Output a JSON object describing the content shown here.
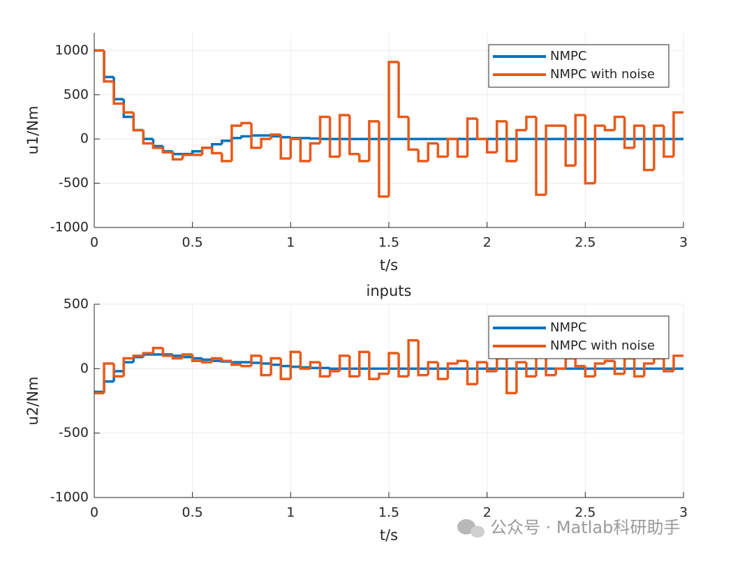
{
  "chart_data": [
    {
      "type": "stairs",
      "ylabel": "u1/Nm",
      "xlabel": "t/s",
      "x": [
        0,
        0.05,
        0.1,
        0.15,
        0.2,
        0.25,
        0.3,
        0.35,
        0.4,
        0.45,
        0.5,
        0.55,
        0.6,
        0.65,
        0.7,
        0.75,
        0.8,
        0.85,
        0.9,
        0.95,
        1,
        1.05,
        1.1,
        1.15,
        1.2,
        1.25,
        1.3,
        1.35,
        1.4,
        1.45,
        1.5,
        1.55,
        1.6,
        1.65,
        1.7,
        1.75,
        1.8,
        1.85,
        1.9,
        1.95,
        2,
        2.05,
        2.1,
        2.15,
        2.2,
        2.25,
        2.3,
        2.35,
        2.4,
        2.45,
        2.5,
        2.55,
        2.6,
        2.65,
        2.7,
        2.75,
        2.8,
        2.85,
        2.9,
        2.95
      ],
      "series": [
        {
          "name": "NMPC",
          "color": "#0072bd",
          "values": [
            1000,
            700,
            450,
            250,
            100,
            0,
            -80,
            -140,
            -170,
            -170,
            -140,
            -100,
            -60,
            -20,
            10,
            30,
            40,
            40,
            30,
            20,
            10,
            10,
            5,
            0,
            0,
            0,
            0,
            0,
            0,
            0,
            0,
            0,
            0,
            0,
            0,
            0,
            0,
            0,
            0,
            0,
            0,
            0,
            0,
            0,
            0,
            0,
            0,
            0,
            0,
            0,
            0,
            0,
            0,
            0,
            0,
            0,
            0,
            0,
            0,
            0
          ]
        },
        {
          "name": "NMPC with noise",
          "color": "#e8591a",
          "values": [
            1000,
            650,
            400,
            300,
            100,
            -50,
            -100,
            -150,
            -230,
            -180,
            -180,
            -100,
            -160,
            -250,
            150,
            180,
            -100,
            0,
            50,
            -220,
            0,
            -250,
            -50,
            250,
            -200,
            270,
            -170,
            -250,
            200,
            -650,
            870,
            250,
            -120,
            -250,
            -50,
            -200,
            0,
            -200,
            230,
            0,
            -150,
            200,
            -250,
            100,
            250,
            -630,
            150,
            150,
            -300,
            270,
            -500,
            150,
            100,
            250,
            -100,
            150,
            -350,
            150,
            -200,
            300
          ]
        }
      ],
      "xlim": [
        0,
        3
      ],
      "xticks": [
        0,
        0.5,
        1,
        1.5,
        2,
        2.5,
        3
      ],
      "ylim": [
        -1000,
        1200
      ],
      "yticks": [
        -1000,
        -500,
        0,
        500,
        1000
      ],
      "grid": true,
      "legend": "upper right"
    },
    {
      "type": "stairs",
      "title": "inputs",
      "ylabel": "u2/Nm",
      "xlabel": "t/s",
      "x": [
        0,
        0.05,
        0.1,
        0.15,
        0.2,
        0.25,
        0.3,
        0.35,
        0.4,
        0.45,
        0.5,
        0.55,
        0.6,
        0.65,
        0.7,
        0.75,
        0.8,
        0.85,
        0.9,
        0.95,
        1,
        1.05,
        1.1,
        1.15,
        1.2,
        1.25,
        1.3,
        1.35,
        1.4,
        1.45,
        1.5,
        1.55,
        1.6,
        1.65,
        1.7,
        1.75,
        1.8,
        1.85,
        1.9,
        1.95,
        2,
        2.05,
        2.1,
        2.15,
        2.2,
        2.25,
        2.3,
        2.35,
        2.4,
        2.45,
        2.5,
        2.55,
        2.6,
        2.65,
        2.7,
        2.75,
        2.8,
        2.85,
        2.9,
        2.95
      ],
      "series": [
        {
          "name": "NMPC",
          "color": "#0072bd",
          "values": [
            -180,
            -100,
            -20,
            50,
            90,
            110,
            110,
            110,
            100,
            90,
            80,
            70,
            60,
            55,
            50,
            50,
            45,
            40,
            30,
            20,
            15,
            10,
            5,
            5,
            0,
            0,
            0,
            0,
            0,
            0,
            0,
            0,
            0,
            0,
            0,
            0,
            0,
            0,
            0,
            0,
            0,
            0,
            0,
            0,
            0,
            0,
            0,
            0,
            0,
            0,
            0,
            0,
            0,
            0,
            0,
            0,
            0,
            0,
            0,
            0
          ]
        },
        {
          "name": "NMPC with noise",
          "color": "#e8591a",
          "values": [
            -190,
            40,
            -60,
            80,
            100,
            120,
            160,
            100,
            80,
            110,
            60,
            50,
            80,
            60,
            30,
            20,
            100,
            -50,
            80,
            -80,
            130,
            0,
            50,
            -60,
            -20,
            100,
            -60,
            130,
            -80,
            -40,
            120,
            -60,
            220,
            -50,
            50,
            -80,
            40,
            60,
            -120,
            50,
            -20,
            80,
            -190,
            50,
            -60,
            100,
            -50,
            0,
            80,
            20,
            -60,
            40,
            60,
            -40,
            80,
            -60,
            40,
            80,
            -20,
            100
          ]
        }
      ],
      "xlim": [
        0,
        3
      ],
      "xticks": [
        0,
        0.5,
        1,
        1.5,
        2,
        2.5,
        3
      ],
      "ylim": [
        -1000,
        500
      ],
      "yticks": [
        -1000,
        -500,
        0,
        500
      ],
      "grid": true,
      "legend": "upper right"
    }
  ],
  "watermark": "公众号 · Matlab科研助手"
}
